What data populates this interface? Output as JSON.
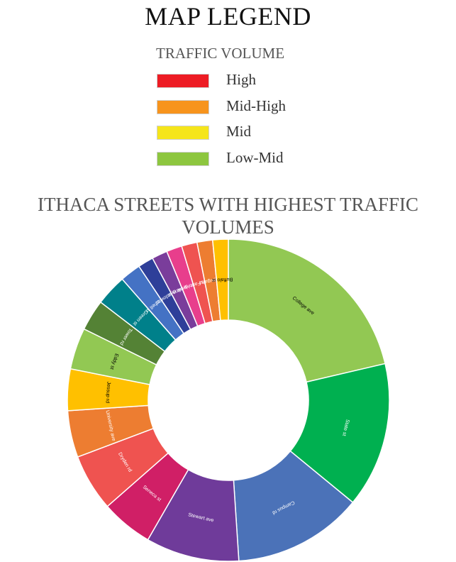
{
  "title": "MAP LEGEND",
  "legend": {
    "title": "TRAFFIC VOLUME",
    "items": [
      {
        "label": "High",
        "color": "#ed1c24"
      },
      {
        "label": "Mid-High",
        "color": "#f7941d"
      },
      {
        "label": "Mid",
        "color": "#f5e51b"
      },
      {
        "label": "Low-Mid",
        "color": "#8dc63f"
      }
    ]
  },
  "chart_data": {
    "type": "pie",
    "title": "ITHACA STREETS WITH HIGHEST TRAFFIC VOLUMES",
    "donut": true,
    "categories": [
      "College ave",
      "State st",
      "Campus rd",
      "Stewart ave",
      "Seneca st",
      "Dryden rd",
      "University ave",
      "Jessup rd",
      "Eddy st",
      "Tower rd",
      "Green st",
      "Mitchell st",
      "Meadow st",
      "Fulton st",
      "Forest Home dr",
      "Crash Farm dr",
      "Cayuga st",
      "Buffalo st"
    ],
    "values": [
      20.5,
      14.0,
      12.5,
      9.0,
      5.0,
      5.5,
      4.5,
      4.0,
      4.0,
      3.0,
      3.0,
      2.0,
      1.5,
      1.5,
      1.5,
      1.5,
      1.5,
      1.5
    ],
    "colors": [
      "#92c853",
      "#00b050",
      "#4b72b8",
      "#6f3b9a",
      "#d01f66",
      "#ef5350",
      "#ed7d31",
      "#ffc000",
      "#92c853",
      "#548235",
      "#00808a",
      "#4472c4",
      "#2e3f99",
      "#7a3d9b",
      "#e83e8c",
      "#ef5350",
      "#ed7d31",
      "#ffc000"
    ],
    "label_colors": [
      "#000000",
      "#ffffff",
      "#ffffff",
      "#ffffff",
      "#ffffff",
      "#ffffff",
      "#ffffff",
      "#000000",
      "#000000",
      "#ffffff",
      "#ffffff",
      "#ffffff",
      "#ffffff",
      "#ffffff",
      "#ffffff",
      "#ffffff",
      "#ffffff",
      "#000000"
    ]
  }
}
